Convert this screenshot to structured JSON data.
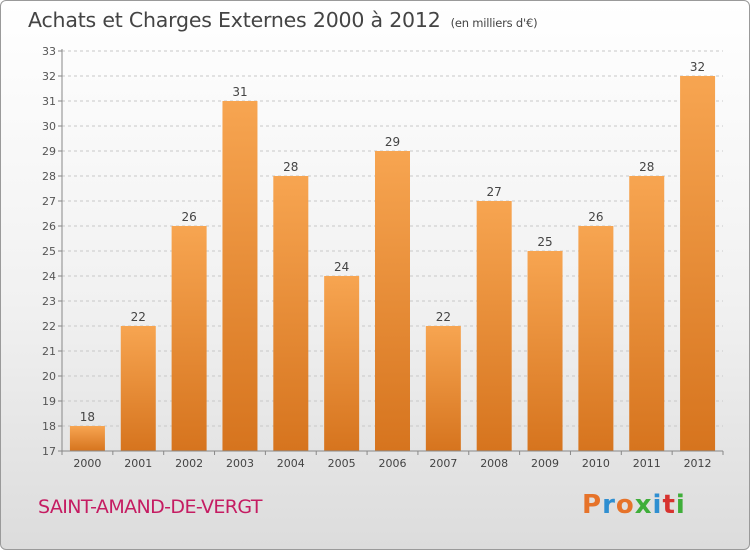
{
  "header": {
    "title": "Achats et Charges Externes 2000 à 2012",
    "subtitle": "(en milliers d'€)"
  },
  "footer": {
    "commune": "SAINT-AMAND-DE-VERGT",
    "brand": "Proxiti",
    "brand_colors": [
      "#e6732a",
      "#2f8fd1",
      "#e6732a",
      "#3fae3a",
      "#2f8fd1",
      "#d7332f",
      "#3fae3a"
    ]
  },
  "colors": {
    "bar_top": "#f7a551",
    "bar_bottom": "#d6741e",
    "title_text": "#444444",
    "commune_text": "#c51c62"
  },
  "chart_data": {
    "type": "bar",
    "title": "Achats et Charges Externes 2000 à 2012",
    "subtitle": "(en milliers d'€)",
    "categories": [
      "2000",
      "2001",
      "2002",
      "2003",
      "2004",
      "2005",
      "2006",
      "2007",
      "2008",
      "2009",
      "2010",
      "2011",
      "2012"
    ],
    "values": [
      18,
      22,
      26,
      31,
      28,
      24,
      29,
      22,
      27,
      25,
      26,
      28,
      32
    ],
    "xlabel": "",
    "ylabel": "",
    "ylim": [
      17,
      33
    ],
    "yticks": [
      17,
      18,
      19,
      20,
      21,
      22,
      23,
      24,
      25,
      26,
      27,
      28,
      29,
      30,
      31,
      32,
      33
    ],
    "grid": "horizontal dashed",
    "data_labels": true
  }
}
